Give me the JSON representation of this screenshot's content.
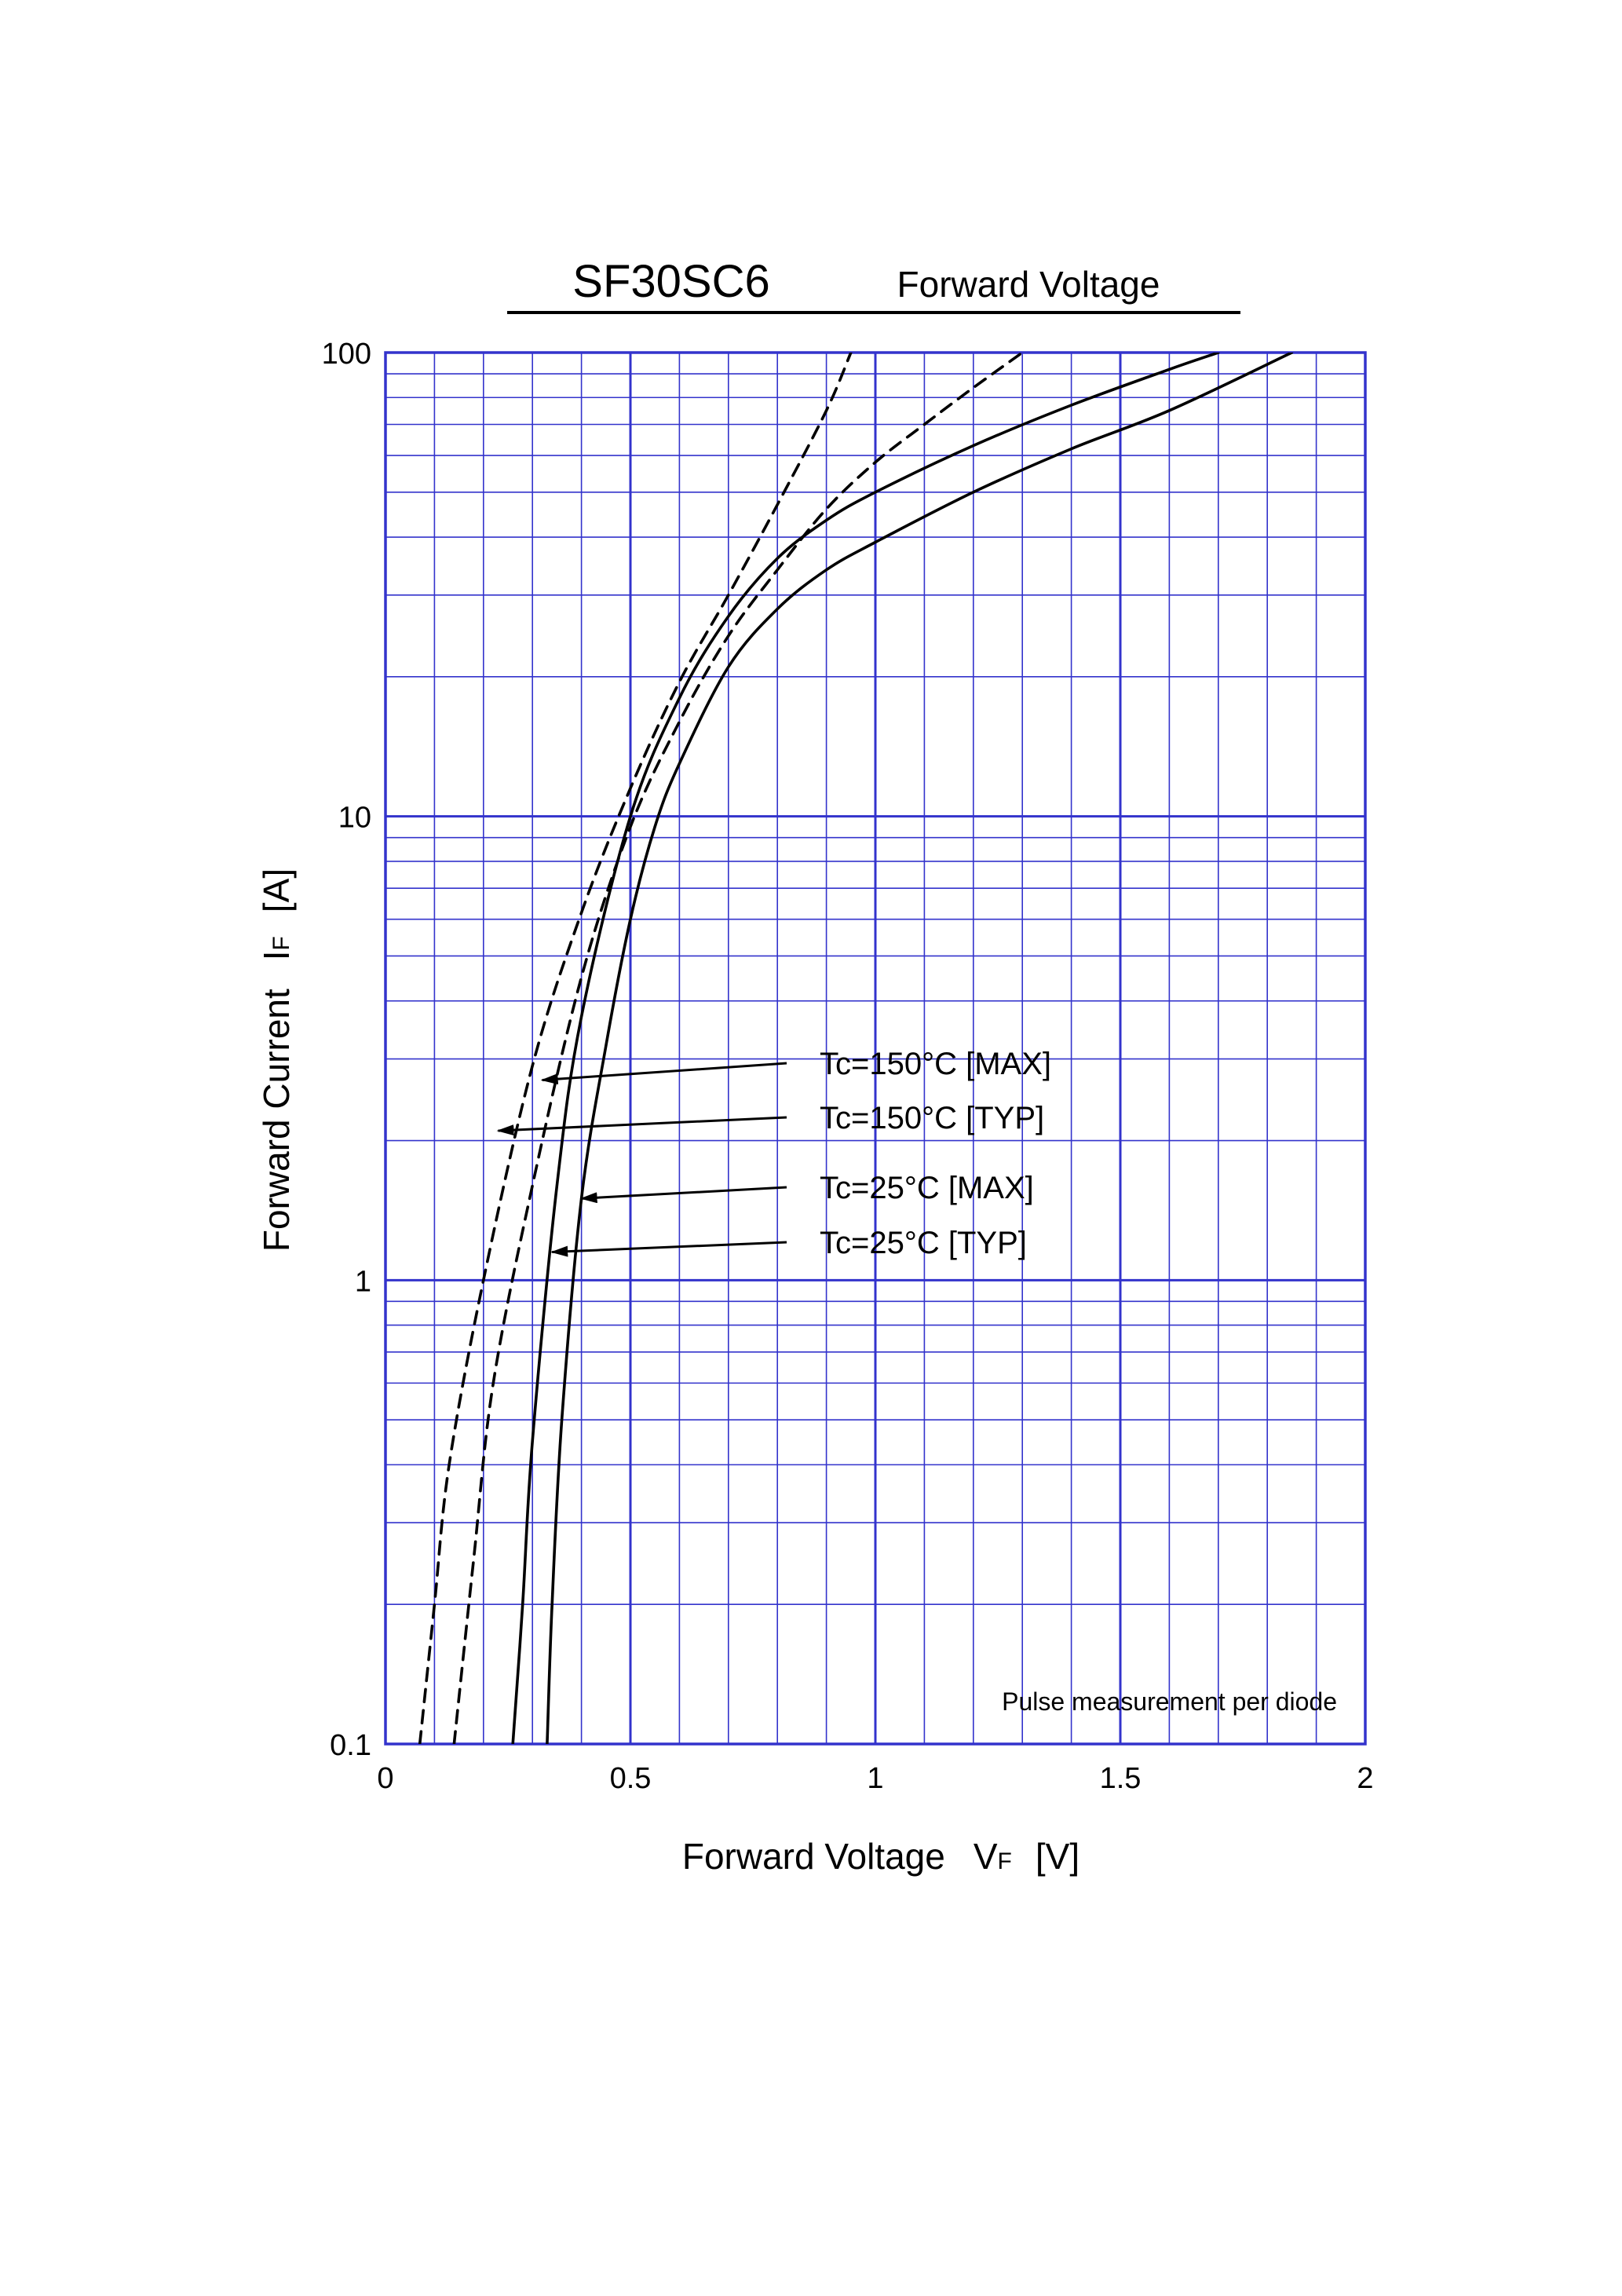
{
  "chart_data": {
    "type": "line",
    "title": "SF30SC6",
    "subtitle": "Forward Voltage",
    "xlabel": "Forward Voltage",
    "xlabel_symbol": "V",
    "xlabel_subscript": "F",
    "xlabel_unit": "[V]",
    "ylabel": "Forward Current",
    "ylabel_symbol": "I",
    "ylabel_subscript": "F",
    "ylabel_unit": "[A]",
    "xlim": [
      0,
      2
    ],
    "ylim": [
      0.1,
      100
    ],
    "yscale": "log",
    "grid": true,
    "x_ticks": [
      0,
      0.5,
      1,
      1.5,
      2
    ],
    "x_tick_labels": [
      "0",
      "0.5",
      "1",
      "1.5",
      "2"
    ],
    "y_ticks": [
      0.1,
      1,
      10,
      100
    ],
    "y_tick_labels": [
      "0.1",
      "1",
      "10",
      "100"
    ],
    "note": "Pulse measurement per diode",
    "colors": {
      "grid": "#3333cc",
      "curve": "#000000",
      "background": "#ffffff"
    },
    "series": [
      {
        "name": "Tc=150°C [MAX]",
        "style": "dashed",
        "x": [
          0.07,
          0.1,
          0.13,
          0.2,
          0.3,
          0.4,
          0.5,
          0.6,
          0.7,
          0.8,
          0.9,
          0.95
        ],
        "y": [
          0.1,
          0.2,
          0.4,
          1.0,
          2.9,
          6.2,
          11.5,
          19.5,
          30,
          47,
          75,
          100
        ]
      },
      {
        "name": "Tc=150°C [TYP]",
        "style": "dashed",
        "x": [
          0.14,
          0.18,
          0.22,
          0.3,
          0.4,
          0.5,
          0.6,
          0.7,
          0.8,
          0.9,
          1.0,
          1.1,
          1.2,
          1.3
        ],
        "y": [
          0.1,
          0.25,
          0.6,
          1.6,
          4.5,
          9.5,
          16,
          24.5,
          34,
          46,
          58,
          70,
          84,
          100
        ]
      },
      {
        "name": "Tc=25°C [MAX]",
        "style": "solid",
        "x": [
          0.26,
          0.28,
          0.3,
          0.35,
          0.4,
          0.5,
          0.6,
          0.7,
          0.8,
          0.9,
          1.0,
          1.2,
          1.4,
          1.6,
          1.7
        ],
        "y": [
          0.1,
          0.2,
          0.45,
          1.6,
          3.7,
          10,
          18,
          27,
          36,
          43.5,
          50,
          63,
          77,
          92,
          100
        ]
      },
      {
        "name": "Tc=25°C [TYP]",
        "style": "solid",
        "x": [
          0.33,
          0.34,
          0.36,
          0.4,
          0.45,
          0.5,
          0.55,
          0.6,
          0.7,
          0.8,
          0.9,
          1.0,
          1.2,
          1.4,
          1.6,
          1.85
        ],
        "y": [
          0.1,
          0.2,
          0.5,
          1.5,
          3.2,
          6,
          9.5,
          13,
          21,
          28,
          34,
          39,
          50,
          62,
          75,
          100
        ]
      }
    ],
    "annotations": [
      {
        "text": "Tc=150°C [MAX]",
        "arrow_to": [
          0.32,
          2.7
        ]
      },
      {
        "text": "Tc=150°C [TYP]",
        "arrow_to": [
          0.23,
          2.1
        ]
      },
      {
        "text": "Tc=25°C [MAX]",
        "arrow_to": [
          0.4,
          1.5
        ]
      },
      {
        "text": "Tc=25°C [TYP]",
        "arrow_to": [
          0.34,
          1.15
        ]
      }
    ]
  }
}
